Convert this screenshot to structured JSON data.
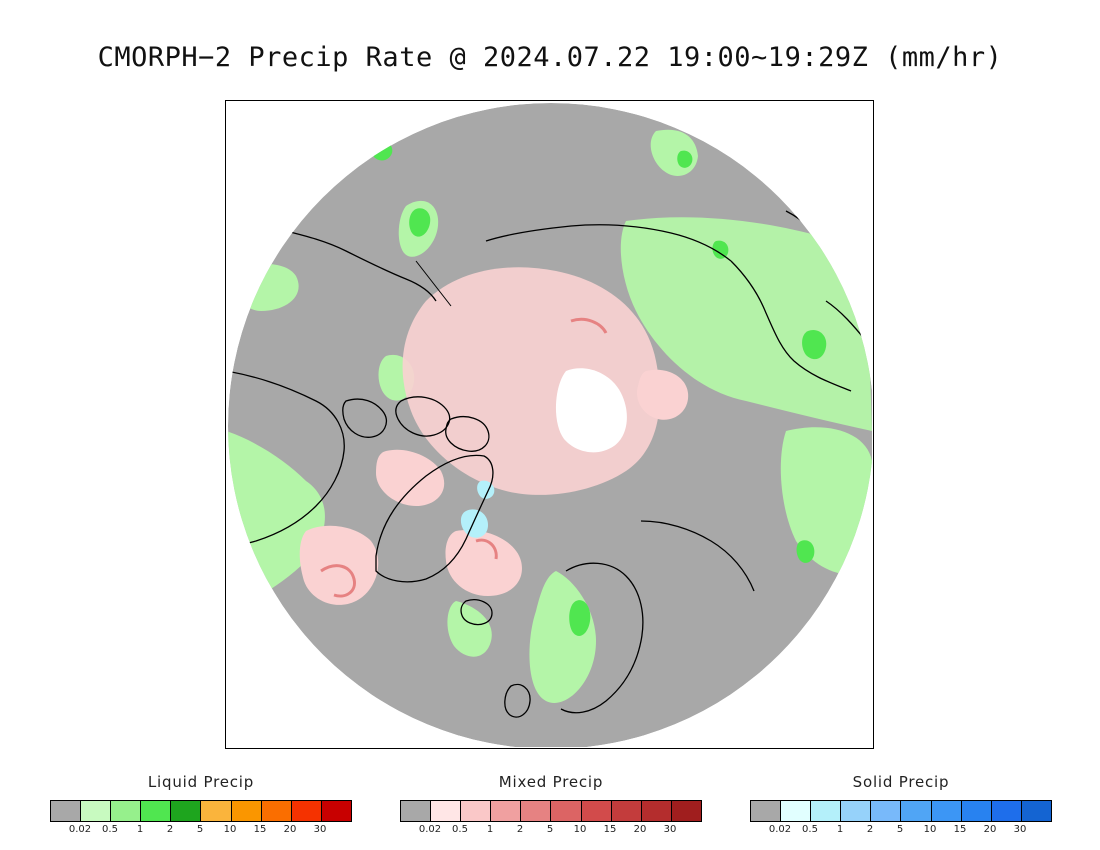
{
  "title": "CMORPH−2 Precip Rate @ 2024.07.22 19:00~19:29Z (mm/hr)",
  "map": {
    "projection": "north-polar-stereographic",
    "background_color": "#a8a8a8",
    "coastline_color": "#000000",
    "pole_nodata_color": "#ffffff"
  },
  "legends": [
    {
      "id": "liquid",
      "title": "Liquid Precip",
      "colors": [
        "#a8a8a8",
        "#c8fac0",
        "#96f08c",
        "#50e650",
        "#1ea51e",
        "#fab43c",
        "#fa9600",
        "#fa6e00",
        "#f53200",
        "#c80000"
      ],
      "ticks": [
        "0.02",
        "0.5",
        "1",
        "2",
        "5",
        "10",
        "15",
        "20",
        "30"
      ]
    },
    {
      "id": "mixed",
      "title": "Mixed Precip",
      "colors": [
        "#a8a8a8",
        "#ffe6e6",
        "#fac8c8",
        "#f0a0a0",
        "#e68282",
        "#dc6464",
        "#d24b4b",
        "#c33c3c",
        "#b42d2d",
        "#a01e1e"
      ],
      "ticks": [
        "0.02",
        "0.5",
        "1",
        "2",
        "5",
        "10",
        "15",
        "20",
        "30"
      ]
    },
    {
      "id": "solid",
      "title": "Solid Precip",
      "colors": [
        "#a8a8a8",
        "#e1ffff",
        "#b4f0fa",
        "#96d2fa",
        "#78b9fa",
        "#50a5f5",
        "#3c96f5",
        "#2882f0",
        "#1e6eeb",
        "#1464d2"
      ],
      "ticks": [
        "0.02",
        "0.5",
        "1",
        "2",
        "5",
        "10",
        "15",
        "20",
        "30"
      ]
    }
  ]
}
